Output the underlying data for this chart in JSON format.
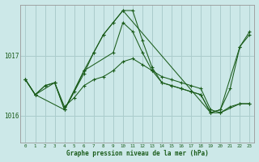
{
  "title": "Graphe pression niveau de la mer (hPa)",
  "background_color": "#cce8e8",
  "grid_color": "#aacccc",
  "line_color": "#1a5c1a",
  "xlim": [
    -0.5,
    23.5
  ],
  "ylim": [
    1015.55,
    1017.85
  ],
  "xticks": [
    0,
    1,
    2,
    3,
    4,
    5,
    6,
    7,
    8,
    9,
    10,
    11,
    12,
    13,
    14,
    15,
    16,
    17,
    18,
    19,
    20,
    21,
    22,
    23
  ],
  "yticks": [
    1016,
    1017
  ],
  "series": [
    {
      "x": [
        0,
        1,
        2,
        3,
        4,
        5,
        6,
        7,
        8,
        9,
        10,
        11,
        12,
        13,
        14,
        15,
        16,
        17,
        18,
        19,
        20,
        21,
        22,
        23
      ],
      "y": [
        1016.6,
        1016.35,
        1016.5,
        1016.55,
        1016.15,
        1016.3,
        1016.5,
        1016.6,
        1016.65,
        1016.75,
        1016.9,
        1016.95,
        1016.85,
        1016.75,
        1016.65,
        1016.6,
        1016.55,
        1016.5,
        1016.45,
        1016.1,
        1016.05,
        1016.15,
        1016.2,
        1016.2
      ]
    },
    {
      "x": [
        0,
        1,
        2,
        3,
        4,
        5,
        6,
        7,
        8,
        9,
        10,
        11,
        12,
        13,
        14,
        15,
        16,
        17,
        18,
        19,
        20,
        21,
        22,
        23
      ],
      "y": [
        1016.6,
        1016.35,
        1016.5,
        1016.55,
        1016.1,
        1016.4,
        1016.75,
        1017.05,
        1017.35,
        1017.55,
        1017.75,
        1017.75,
        1017.25,
        1016.8,
        1016.55,
        1016.5,
        1016.45,
        1016.4,
        1016.35,
        1016.05,
        1016.1,
        1016.45,
        1017.15,
        1017.35
      ]
    },
    {
      "x": [
        0,
        1,
        4,
        6,
        7,
        8,
        9,
        10,
        19,
        20,
        22,
        23
      ],
      "y": [
        1016.6,
        1016.35,
        1016.1,
        1016.7,
        1017.05,
        1017.35,
        1017.55,
        1017.75,
        1016.05,
        1016.1,
        1017.15,
        1017.4
      ]
    },
    {
      "x": [
        0,
        1,
        3,
        4,
        6,
        9,
        10,
        11,
        12,
        13,
        14,
        15,
        16,
        17,
        18,
        19,
        20,
        22,
        23
      ],
      "y": [
        1016.6,
        1016.35,
        1016.55,
        1016.1,
        1016.75,
        1017.05,
        1017.55,
        1017.4,
        1017.05,
        1016.75,
        1016.55,
        1016.5,
        1016.45,
        1016.4,
        1016.35,
        1016.05,
        1016.05,
        1016.2,
        1016.2
      ]
    }
  ]
}
